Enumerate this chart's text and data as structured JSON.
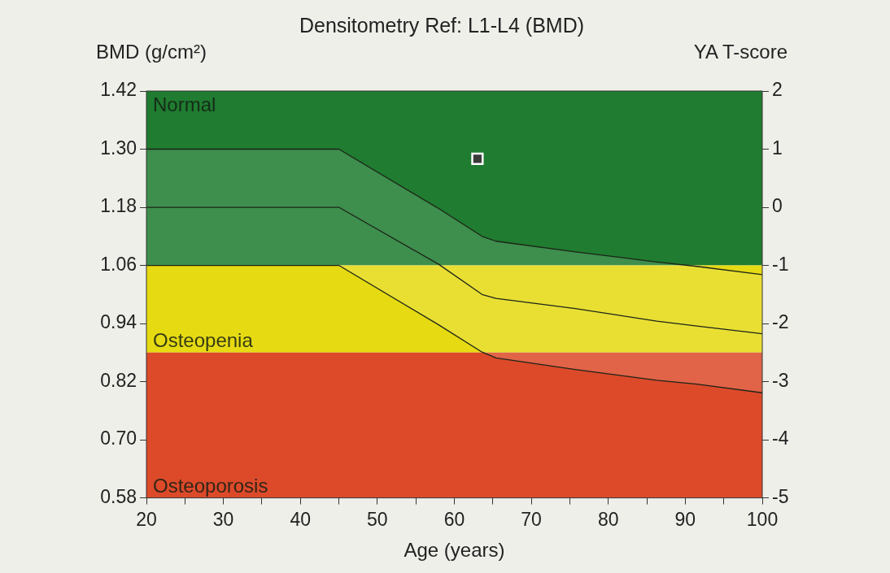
{
  "chart_data": {
    "type": "line",
    "title": "Densitometry Ref: L1-L4 (BMD)",
    "xlabel": "Age (years)",
    "ylabel": "BMD (g/cm²)",
    "y2label": "YA T-score",
    "xlim": [
      20,
      100
    ],
    "xticks": [
      20,
      {
        "value": 25,
        "label": null
      },
      30,
      {
        "value": 35,
        "label": null
      },
      40,
      {
        "value": 45,
        "label": null
      },
      50,
      {
        "value": 55,
        "label": null
      },
      60,
      {
        "value": 65,
        "label": null
      },
      70,
      {
        "value": 75,
        "label": null
      },
      80,
      {
        "value": 85,
        "label": null
      },
      90,
      {
        "value": 95,
        "label": null
      },
      100
    ],
    "ylim": [
      0.58,
      1.42
    ],
    "yticks": [
      0.58,
      {
        "value": 0.7,
        "label": "0.70"
      },
      0.82,
      0.94,
      1.06,
      1.18,
      {
        "value": 1.3,
        "label": "1.30"
      },
      1.42
    ],
    "y2lim": [
      -5,
      2
    ],
    "y2ticks": [
      -5,
      -4,
      -3,
      -2,
      -1,
      0,
      1,
      2
    ],
    "grid": false,
    "legend": false,
    "line_style": "solid",
    "bands": [
      {
        "axis": "y",
        "from": 1.06,
        "to": 1.42,
        "label": "Normal",
        "color": "#1f7c30"
      },
      {
        "axis": "y",
        "from": 0.88,
        "to": 1.06,
        "label": "Osteopenia",
        "color": "#e6da12"
      },
      {
        "axis": "y",
        "from": 0.58,
        "to": 0.88,
        "label": "Osteoporosis",
        "color": "#dc4a2a"
      }
    ],
    "series": [
      {
        "type": "line",
        "color": "#1c2418",
        "marker": "none",
        "x": [
          20,
          45,
          58,
          63.6,
          65.4,
          75.7,
          86.3,
          91.5,
          100
        ],
        "values": [
          1.3,
          1.3,
          1.177,
          1.12,
          1.11,
          1.088,
          1.067,
          1.058,
          1.041
        ]
      },
      {
        "type": "line",
        "color": "#1c2418",
        "marker": "none",
        "x": [
          20,
          45,
          58,
          63.6,
          65.4,
          75.7,
          86.3,
          91.5,
          100
        ],
        "values": [
          1.18,
          1.18,
          1.062,
          1.0,
          0.992,
          0.971,
          0.945,
          0.935,
          0.919
        ],
        "lower": [
          1.06,
          1.06,
          0.937,
          0.881,
          0.869,
          0.845,
          0.823,
          0.815,
          0.797
        ],
        "upper": [
          1.3,
          1.3,
          1.177,
          1.12,
          1.11,
          1.088,
          1.067,
          1.058,
          1.041
        ]
      },
      {
        "type": "line",
        "color": "#1c2418",
        "marker": "none",
        "x": [
          20,
          45,
          58,
          63.6,
          65.4,
          75.7,
          86.3,
          91.5,
          100
        ],
        "values": [
          1.06,
          1.06,
          0.937,
          0.881,
          0.869,
          0.845,
          0.823,
          0.815,
          0.797
        ]
      },
      {
        "type": "scatter",
        "color": "#3a3a3a",
        "marker": "square",
        "x": [
          63
        ],
        "values": [
          1.28
        ]
      }
    ]
  }
}
